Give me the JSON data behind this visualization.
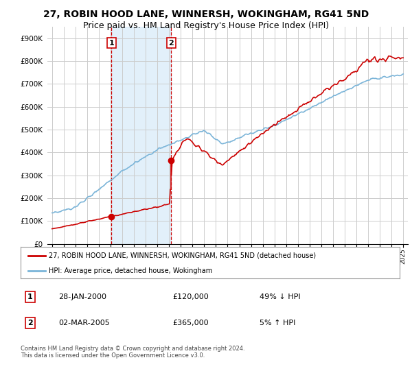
{
  "title": "27, ROBIN HOOD LANE, WINNERSH, WOKINGHAM, RG41 5ND",
  "subtitle": "Price paid vs. HM Land Registry's House Price Index (HPI)",
  "ylim": [
    0,
    950000
  ],
  "yticks": [
    0,
    100000,
    200000,
    300000,
    400000,
    500000,
    600000,
    700000,
    800000,
    900000
  ],
  "ytick_labels": [
    "£0",
    "£100K",
    "£200K",
    "£300K",
    "£400K",
    "£500K",
    "£600K",
    "£700K",
    "£800K",
    "£900K"
  ],
  "sale1_date": 2000.07,
  "sale1_price": 120000,
  "sale1_label": "1",
  "sale2_date": 2005.17,
  "sale2_price": 365000,
  "sale2_label": "2",
  "hpi_color": "#7ab4d8",
  "price_color": "#cc0000",
  "sale_marker_color": "#cc0000",
  "vline_color": "#cc0000",
  "shade_color": "#d6eaf8",
  "background_color": "#ffffff",
  "plot_bg_color": "#ffffff",
  "grid_color": "#cccccc",
  "legend1_text": "27, ROBIN HOOD LANE, WINNERSH, WOKINGHAM, RG41 5ND (detached house)",
  "legend2_text": "HPI: Average price, detached house, Wokingham",
  "annotation1_date": "28-JAN-2000",
  "annotation1_price": "£120,000",
  "annotation1_hpi": "49% ↓ HPI",
  "annotation2_date": "02-MAR-2005",
  "annotation2_price": "£365,000",
  "annotation2_hpi": "5% ↑ HPI",
  "footer": "Contains HM Land Registry data © Crown copyright and database right 2024.\nThis data is licensed under the Open Government Licence v3.0.",
  "title_fontsize": 10,
  "subtitle_fontsize": 9
}
